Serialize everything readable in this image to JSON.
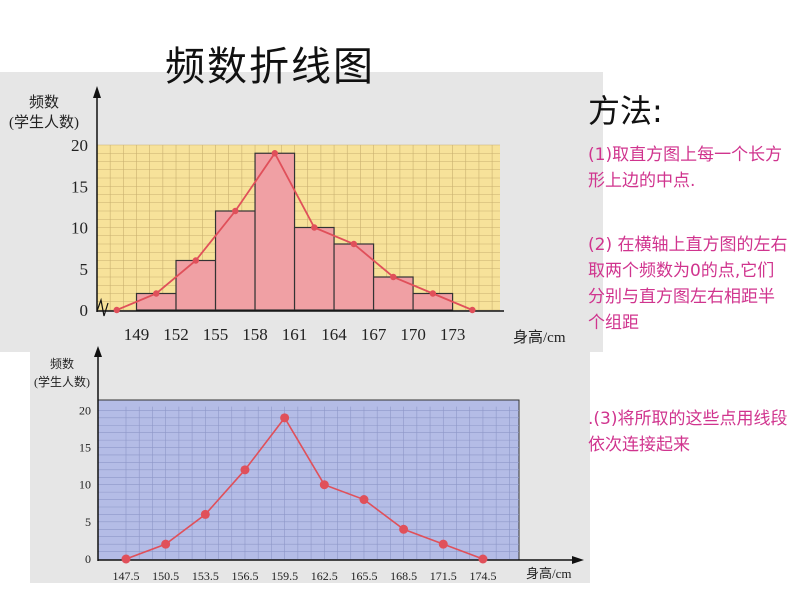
{
  "title": "频数折线图",
  "method": {
    "heading": "方法:",
    "step1": "(1)取直方图上每一个长方形上边的中点.",
    "step2": "(2) 在横轴上直方图的左右取两个频数为0的点,它们分别与直方图左右相距半个组距",
    "step3": ".(3)将所取的这些点用线段依次连接起来"
  },
  "colors": {
    "hist_bg": "#f7e29a",
    "bar_fill": "#f0a0a4",
    "bar_stroke": "#333333",
    "line": "#e0505a",
    "plot2_bg": "#b4bce6",
    "method_text": "#d0348e"
  },
  "chart_data": [
    {
      "type": "bar",
      "ylabel_line1": "频数",
      "ylabel_line2": "(学生人数)",
      "xlabel": "身高/cm",
      "x_tick_labels": [
        "149",
        "152",
        "155",
        "158",
        "161",
        "164",
        "167",
        "170",
        "173"
      ],
      "y_tick_labels": [
        "0",
        "5",
        "10",
        "15",
        "20"
      ],
      "ylim": [
        0,
        20
      ],
      "xlim": [
        146,
        176
      ],
      "bins": [
        {
          "start": 149,
          "end": 152,
          "count": 2
        },
        {
          "start": 152,
          "end": 155,
          "count": 6
        },
        {
          "start": 155,
          "end": 158,
          "count": 12
        },
        {
          "start": 158,
          "end": 161,
          "count": 19
        },
        {
          "start": 161,
          "end": 164,
          "count": 10
        },
        {
          "start": 164,
          "end": 167,
          "count": 8
        },
        {
          "start": 167,
          "end": 170,
          "count": 4
        },
        {
          "start": 170,
          "end": 173,
          "count": 2
        }
      ],
      "polygon": {
        "x": [
          147.5,
          150.5,
          153.5,
          156.5,
          159.5,
          162.5,
          165.5,
          168.5,
          171.5,
          174.5
        ],
        "y": [
          0,
          2,
          6,
          12,
          19,
          10,
          8,
          4,
          2,
          0
        ]
      },
      "grid": true
    },
    {
      "type": "line",
      "ylabel_line1": "频数",
      "ylabel_line2": "(学生人数)",
      "xlabel": "身高/cm",
      "x": [
        147.5,
        150.5,
        153.5,
        156.5,
        159.5,
        162.5,
        165.5,
        168.5,
        171.5,
        174.5
      ],
      "x_tick_labels": [
        "147.5",
        "150.5",
        "153.5",
        "156.5",
        "159.5",
        "162.5",
        "165.5",
        "168.5",
        "171.5",
        "174.5"
      ],
      "y": [
        0,
        2,
        6,
        12,
        19,
        10,
        8,
        4,
        2,
        0
      ],
      "y_tick_labels": [
        "0",
        "5",
        "10",
        "15",
        "20"
      ],
      "ylim": [
        0,
        20
      ],
      "grid": true
    }
  ]
}
